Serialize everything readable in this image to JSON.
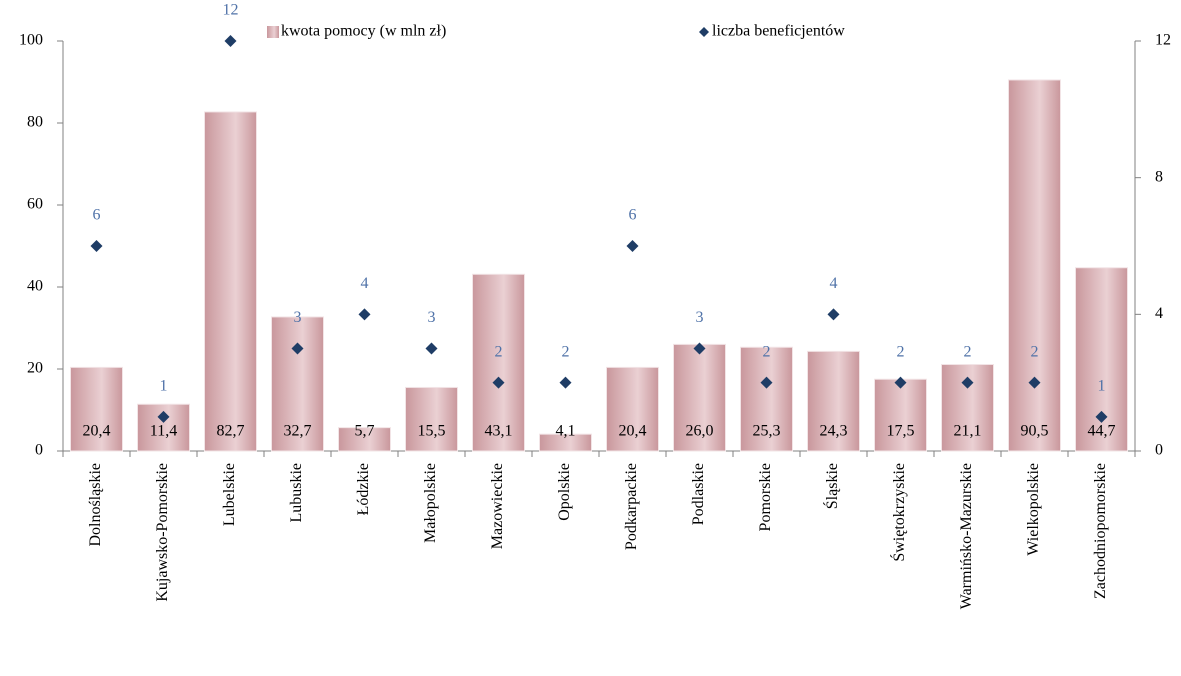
{
  "chart_data": {
    "type": "bar",
    "categories": [
      "Dolnośląskie",
      "Kujawsko-Pomorskie",
      "Lubelskie",
      "Lubuskie",
      "Łódzkie",
      "Małopolskie",
      "Mazowieckie",
      "Opolskie",
      "Podkarpackie",
      "Podlaskie",
      "Pomorskie",
      "Śląskie",
      "Świętokrzyskie",
      "Warmińsko-Mazurskie",
      "Wielkopolskie",
      "Zachodniopomorskie"
    ],
    "series": [
      {
        "name": "kwota pomocy (w mln zł)",
        "type": "bar",
        "color": "#c9979c",
        "values": [
          20.4,
          11.4,
          82.7,
          32.7,
          5.7,
          15.5,
          43.1,
          4.1,
          20.4,
          26.0,
          25.3,
          24.3,
          17.5,
          21.1,
          90.5,
          44.7
        ],
        "value_labels": [
          "20,4",
          "11,4",
          "82,7",
          "32,7",
          "5,7",
          "15,5",
          "43,1",
          "4,1",
          "20,4",
          "26,0",
          "25,3",
          "24,3",
          "17,5",
          "21,1",
          "90,5",
          "44,7"
        ]
      },
      {
        "name": "liczba beneficjentów",
        "type": "scatter",
        "axis": "y2",
        "color": "#1f3d66",
        "label_color": "#4f72a8",
        "values": [
          6,
          1,
          12,
          3,
          4,
          3,
          2,
          2,
          6,
          3,
          2,
          4,
          2,
          2,
          2,
          1
        ]
      }
    ],
    "ylim": [
      0,
      100
    ],
    "yticks": [
      0,
      20,
      40,
      60,
      80,
      100
    ],
    "y2lim": [
      0,
      12
    ],
    "y2ticks": [
      0,
      4,
      8,
      12
    ],
    "legend": "top"
  }
}
